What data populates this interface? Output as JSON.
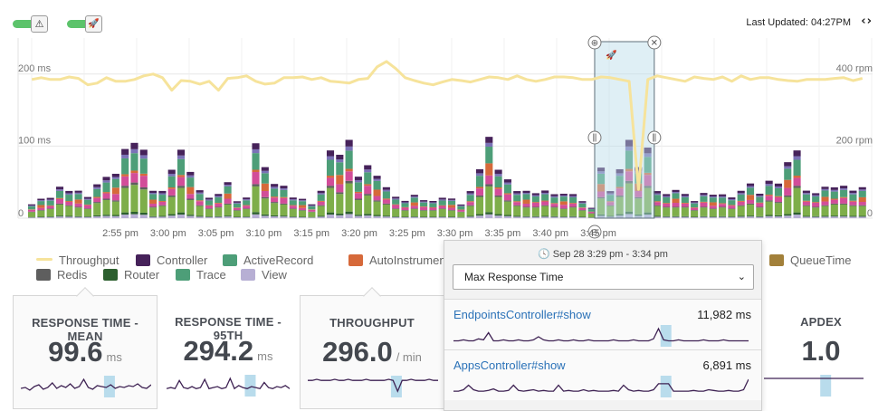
{
  "toolbar": {
    "toggles": [
      {
        "icon": "warning-icon",
        "glyph": "⚠",
        "state": "on"
      },
      {
        "icon": "rocket-icon",
        "glyph": "🚀",
        "state": "on"
      }
    ],
    "last_updated": "Last Updated: 04:27PM",
    "nav_arrows": "‹›"
  },
  "chart_data": {
    "type": "bar",
    "x_ticks": [
      "2:55 pm",
      "3:00 pm",
      "3:05 pm",
      "3:10 pm",
      "3:15 pm",
      "3:20 pm",
      "3:25 pm",
      "3:30 pm",
      "3:35 pm",
      "3:40 pm",
      "3:45 pm"
    ],
    "y_left_ticks": [
      "200 ms",
      "100 ms"
    ],
    "y_right_ticks": [
      "400 rpm",
      "200 rpm"
    ],
    "ylim_ms": [
      0,
      250
    ],
    "ylim_rpm": [
      0,
      500
    ],
    "stack_order": [
      "View",
      "Router",
      "Trace",
      "Redis",
      "AutoInstrument",
      "ActiveRecord",
      "Controller"
    ],
    "series_colors": {
      "Throughput": "#f6e39b",
      "Controller": "#46225a",
      "ActiveRecord": "#4d9e78",
      "AutoInstrument": "#d6693a",
      "Redis": "#5e5e5e",
      "Router": "#2c5f2e",
      "Trace": "#7eae4a",
      "View": "#b7afd4",
      "Accent": "#d24d99",
      "Middleware": "#7a72b6",
      "QueueTime": "#a2803a"
    },
    "bar_totals_ms": [
      20,
      25,
      30,
      45,
      40,
      35,
      30,
      50,
      60,
      55,
      100,
      110,
      95,
      35,
      40,
      70,
      100,
      60,
      40,
      30,
      35,
      45,
      25,
      30,
      105,
      65,
      50,
      45,
      30,
      25,
      20,
      40,
      100,
      80,
      115,
      60,
      75,
      55,
      45,
      30,
      25,
      30,
      25,
      25,
      30,
      25,
      20,
      40,
      70,
      105,
      70,
      55,
      40,
      35,
      35,
      40,
      35,
      30,
      35,
      25,
      15,
      65,
      40,
      70,
      115,
      65,
      100,
      40,
      35,
      35,
      35,
      25,
      35,
      30,
      35,
      30,
      40,
      45,
      35,
      55,
      50,
      70,
      100,
      40,
      35,
      40,
      45,
      45,
      40,
      40
    ],
    "throughput_rpm": [
      385,
      390,
      385,
      385,
      392,
      388,
      370,
      375,
      390,
      380,
      380,
      385,
      395,
      400,
      390,
      355,
      382,
      380,
      372,
      380,
      355,
      388,
      390,
      395,
      380,
      372,
      375,
      390,
      390,
      392,
      385,
      390,
      380,
      378,
      375,
      385,
      388,
      420,
      435,
      415,
      390,
      382,
      375,
      370,
      378,
      385,
      382,
      378,
      385,
      392,
      390,
      385,
      395,
      385,
      380,
      385,
      392,
      392,
      390,
      385,
      385,
      392,
      390,
      385,
      380,
      80,
      385,
      395,
      390,
      385,
      380,
      392,
      388,
      385,
      392,
      380,
      395,
      385,
      390,
      390,
      385,
      382,
      380,
      385,
      385,
      385,
      388,
      390,
      382,
      388
    ],
    "selection": {
      "start_index": 61,
      "end_index": 66
    }
  },
  "legend": [
    {
      "label": "Throughput",
      "color": "#f6e39b",
      "kind": "line"
    },
    {
      "label": "Controller",
      "color": "#46225a",
      "kind": "box"
    },
    {
      "label": "ActiveRecord",
      "color": "#4d9e78",
      "kind": "box"
    },
    {
      "label": "AutoInstrument",
      "color": "#d6693a",
      "kind": "box"
    },
    {
      "label": "QueueTime",
      "color": "#a2803a",
      "kind": "box"
    },
    {
      "label": "Redis",
      "color": "#5e5e5e",
      "kind": "box"
    },
    {
      "label": "Router",
      "color": "#2c5f2e",
      "kind": "box"
    },
    {
      "label": "Trace",
      "color": "#4d9e78",
      "kind": "box"
    },
    {
      "label": "View",
      "color": "#b7afd4",
      "kind": "box"
    }
  ],
  "cards": [
    {
      "title": "RESPONSE TIME - MEAN",
      "value": "99.6",
      "unit": "ms",
      "boxed": true,
      "spark": [
        8,
        9,
        6,
        10,
        12,
        7,
        9,
        14,
        8,
        11,
        9,
        13,
        8,
        10,
        18,
        9,
        7,
        11,
        10,
        9,
        12,
        8,
        10,
        9,
        11,
        10,
        13,
        9,
        8,
        12
      ]
    },
    {
      "title": "RESPONSE TIME - 95TH",
      "value": "294.2",
      "unit": "ms",
      "boxed": false,
      "spark": [
        6,
        7,
        6,
        14,
        7,
        6,
        8,
        6,
        7,
        15,
        6,
        7,
        8,
        6,
        7,
        16,
        6,
        9,
        7,
        6,
        8,
        7,
        6,
        12,
        7,
        6,
        8,
        7,
        9,
        6
      ]
    },
    {
      "title": "THROUGHPUT",
      "value": "296.0",
      "unit": "/ min",
      "boxed": true,
      "spark": [
        14,
        14,
        15,
        14,
        14,
        14,
        15,
        14,
        14,
        15,
        14,
        14,
        14,
        15,
        14,
        14,
        14,
        14,
        15,
        14,
        4,
        14,
        14,
        15,
        14,
        14,
        14,
        15,
        14,
        14
      ]
    },
    {
      "title": "APDEX",
      "value": "1.0",
      "unit": "",
      "boxed": false,
      "spark": [
        16,
        16,
        16,
        16,
        16,
        16,
        16,
        16,
        16,
        16,
        16,
        16,
        16,
        16,
        16,
        16,
        16,
        16,
        16,
        16,
        16,
        16,
        16,
        16,
        16,
        16,
        16,
        16,
        16,
        16
      ]
    }
  ],
  "popup": {
    "date_label": "Sep 28 3:29 pm - 3:34 pm",
    "select_value": "Max Response Time",
    "rows": [
      {
        "name": "EndpointsController#show",
        "value": "11,982 ms",
        "spark": [
          4,
          4,
          5,
          4,
          4,
          6,
          5,
          12,
          4,
          4,
          5,
          4,
          4,
          5,
          4,
          4,
          5,
          8,
          5,
          4,
          4,
          5,
          4,
          4,
          5,
          4,
          4,
          5,
          4,
          4,
          4,
          4,
          5,
          4,
          4,
          4,
          5,
          4,
          4,
          4,
          6,
          16,
          5,
          4,
          4,
          5,
          4,
          4,
          4,
          4,
          5,
          4,
          4,
          4,
          5,
          4,
          4,
          4,
          4,
          4
        ]
      },
      {
        "name": "AppsController#show",
        "value": "6,891 ms",
        "spark": [
          6,
          6,
          8,
          14,
          8,
          6,
          6,
          7,
          9,
          6,
          6,
          7,
          14,
          7,
          6,
          7,
          8,
          6,
          7,
          6,
          6,
          14,
          6,
          7,
          6,
          6,
          8,
          6,
          7,
          6,
          6,
          6,
          7,
          6,
          14,
          8,
          6,
          7,
          6,
          6,
          8,
          16,
          16,
          16,
          6,
          6,
          6,
          6,
          7,
          6,
          6,
          8,
          7,
          6,
          6,
          7,
          6,
          6,
          8,
          22
        ]
      }
    ]
  }
}
